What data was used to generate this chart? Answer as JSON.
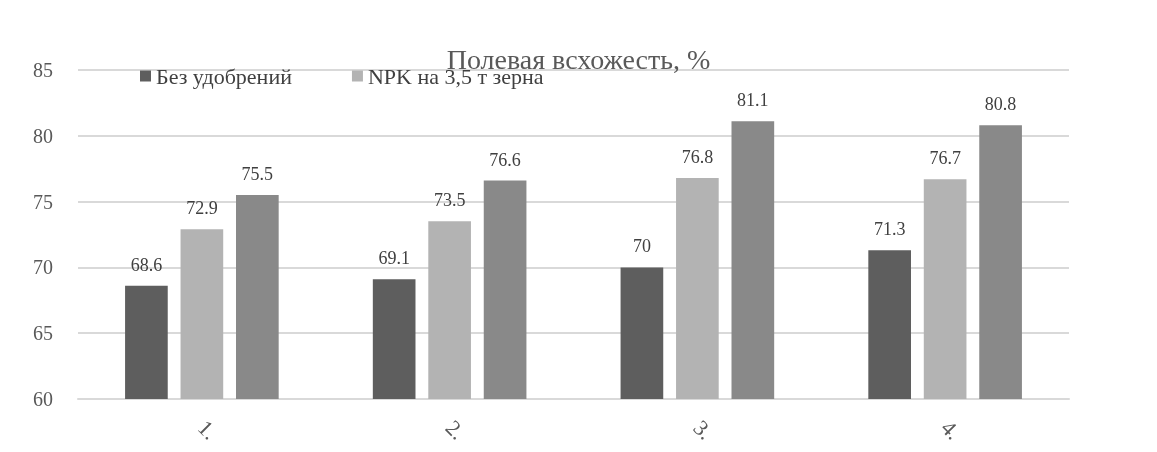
{
  "chart_data": {
    "type": "bar",
    "title": "Полевая всхожесть, %",
    "categories": [
      "1.",
      "2.",
      "3.",
      "4."
    ],
    "series": [
      {
        "name": "Без удобрений",
        "color": "#5e5e5e",
        "values": [
          68.6,
          69.1,
          70,
          71.3
        ]
      },
      {
        "name": "NPK на 3,5 т зерна",
        "color": "#b3b3b3",
        "values": [
          72.9,
          73.5,
          76.8,
          76.7
        ]
      },
      {
        "color": "#898989",
        "values": [
          75.5,
          76.6,
          81.1,
          80.8
        ]
      }
    ],
    "ylim": [
      60,
      85
    ],
    "yticks": [
      60,
      65,
      70,
      75,
      80,
      85
    ],
    "grid": "y",
    "legend": "top left",
    "data_labels": true
  }
}
